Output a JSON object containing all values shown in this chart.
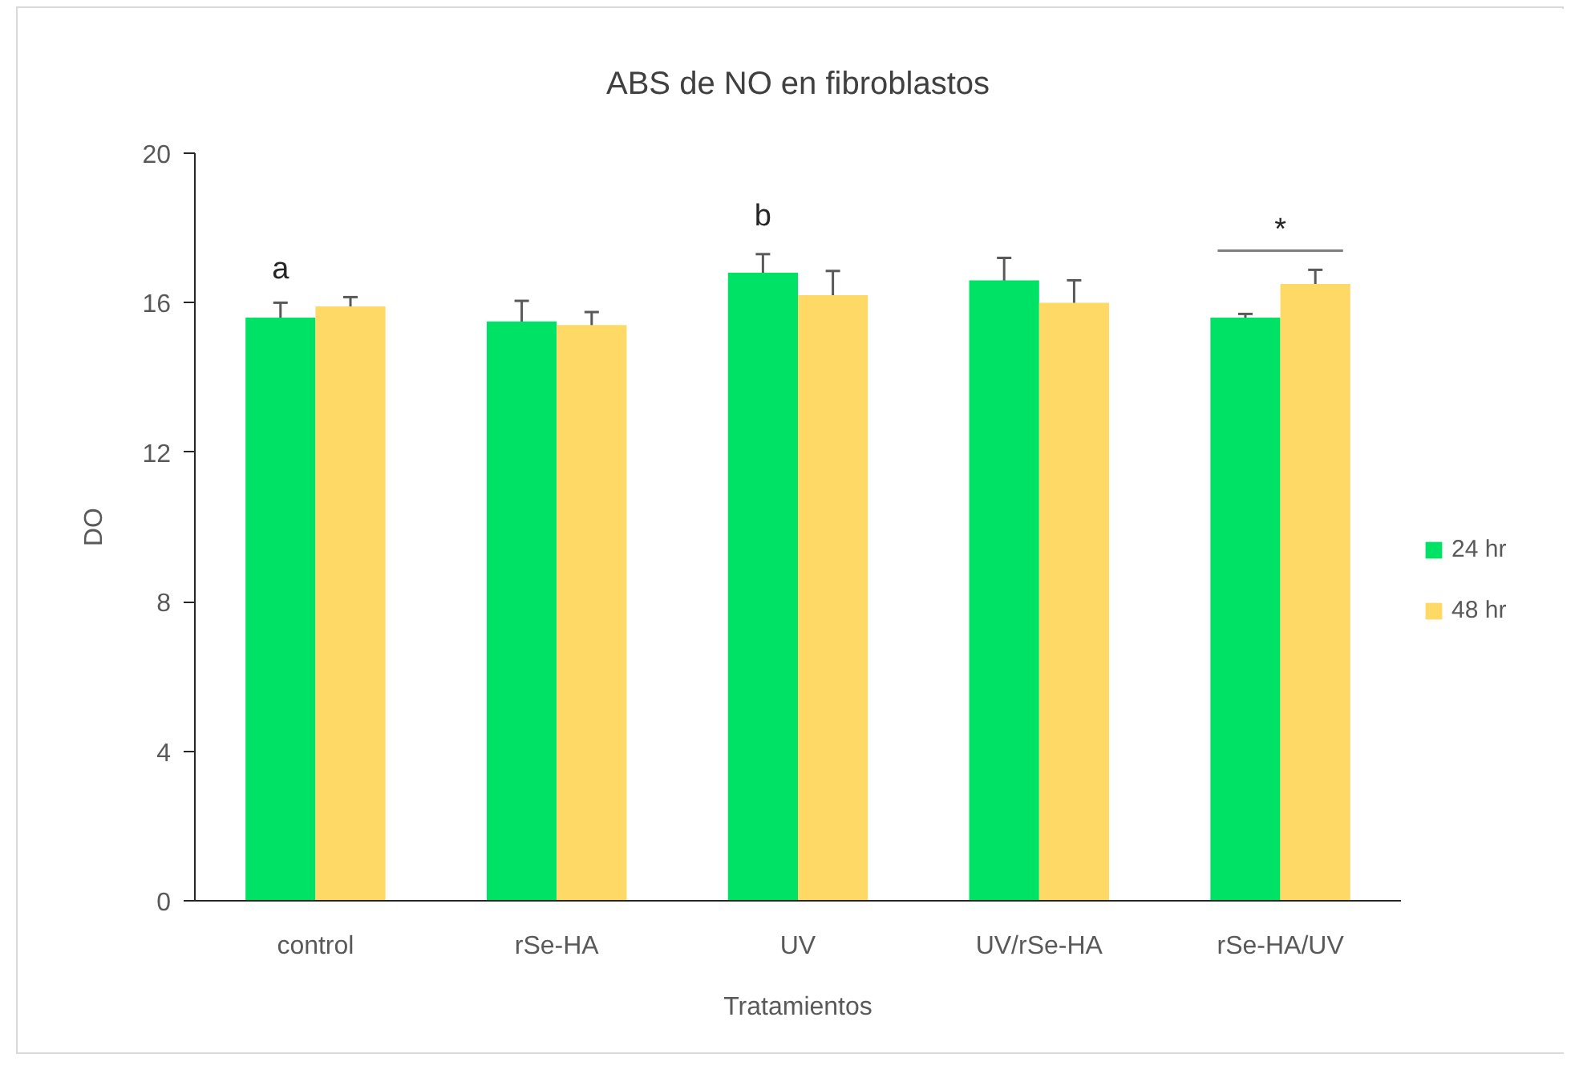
{
  "chart_data": {
    "type": "bar",
    "title": "ABS de NO en fibroblastos",
    "xlabel": "Tratamientos",
    "ylabel": "DO",
    "categories": [
      "control",
      "rSe-HA",
      "UV",
      "UV/rSe-HA",
      "rSe-HA/UV"
    ],
    "series": [
      {
        "name": "24 hr",
        "color": "#00e266",
        "values": [
          15.6,
          15.5,
          16.8,
          16.6,
          15.6
        ],
        "errors": [
          0.4,
          0.55,
          0.5,
          0.6,
          0.1
        ]
      },
      {
        "name": "48 hr",
        "color": "#ffd966",
        "values": [
          15.9,
          15.4,
          16.2,
          16.0,
          16.5
        ],
        "errors": [
          0.25,
          0.35,
          0.65,
          0.6,
          0.38
        ]
      }
    ],
    "ylim": [
      0,
      20
    ],
    "yticks": [
      0,
      4,
      8,
      12,
      16,
      20
    ],
    "legend": "right",
    "annotations": [
      "a",
      "b",
      "*"
    ]
  }
}
